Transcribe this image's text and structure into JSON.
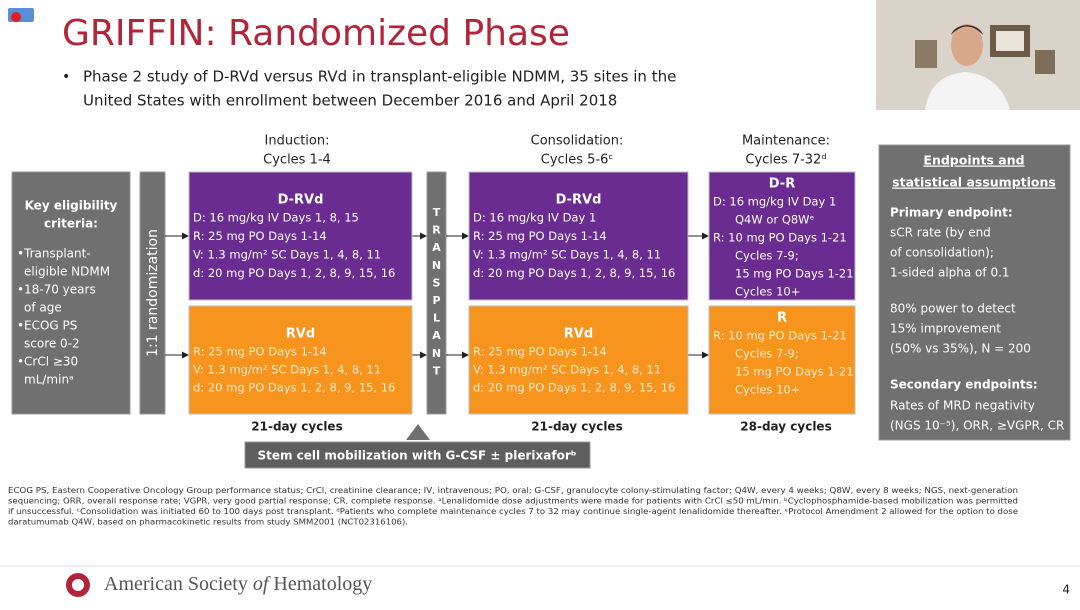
{
  "header": {
    "title": "GRIFFIN: Randomized Phase",
    "bullet": [
      "Phase 2 study of D-RVd versus RVd in transplant-eligible NDMM, 35 sites in the",
      "United States with enrollment between December 2016 and April 2018"
    ]
  },
  "eligibility": {
    "title": [
      "Key eligibility",
      "criteria:"
    ],
    "items": [
      [
        "Transplant-",
        "eligible NDMM"
      ],
      [
        "18-70 years",
        "of age"
      ],
      [
        "ECOG PS",
        "score 0-2"
      ],
      [
        "CrCl ≥30",
        "mL/minᵃ"
      ]
    ]
  },
  "randomization": "1:1 randomization",
  "transplant": "TRANSPLANT",
  "phases": [
    {
      "name": "Induction:",
      "cycles": "Cycles 1-4",
      "cycle_length": "21-day cycles",
      "arms": [
        {
          "name": "D-RVd",
          "lines": [
            "D: 16 mg/kg IV Days 1, 8, 15",
            "R: 25 mg PO Days 1-14",
            "V: 1.3 mg/m² SC Days 1, 4, 8, 11",
            "d: 20 mg PO Days 1, 2, 8, 9, 15, 16"
          ]
        },
        {
          "name": "RVd",
          "lines": [
            "R: 25 mg PO Days 1-14",
            "V: 1.3 mg/m² SC Days 1, 4, 8, 11",
            "d: 20 mg PO Days 1, 2, 8, 9, 15, 16"
          ]
        }
      ]
    },
    {
      "name": "Consolidation:",
      "cycles": "Cycles 5-6ᶜ",
      "cycle_length": "21-day cycles",
      "arms": [
        {
          "name": "D-RVd",
          "lines": [
            "D: 16 mg/kg IV Day 1",
            "R: 25 mg PO Days 1-14",
            "V: 1.3 mg/m² SC Days 1, 4, 8, 11",
            "d: 20 mg PO Days 1, 2, 8, 9, 15, 16"
          ]
        },
        {
          "name": "RVd",
          "lines": [
            "R: 25 mg PO Days 1-14",
            "V: 1.3 mg/m² SC Days 1, 4, 8, 11",
            "d: 20 mg PO Days 1, 2, 8, 9, 15, 16"
          ]
        }
      ]
    },
    {
      "name": "Maintenance:",
      "cycles": "Cycles 7-32ᵈ",
      "cycle_length": "28-day cycles",
      "arms": [
        {
          "name": "D-R",
          "lines": [
            "D: 16 mg/kg IV Day 1",
            "Q4W or Q8Wᵉ",
            "R: 10 mg PO Days 1-21",
            "Cycles 7-9;",
            "15 mg PO Days 1-21",
            "Cycles 10+"
          ]
        },
        {
          "name": "R",
          "lines": [
            "R: 10 mg PO Days 1-21",
            "Cycles 7-9;",
            "15 mg PO Days 1-21",
            "Cycles 10+"
          ]
        }
      ]
    }
  ],
  "stem_cell": "Stem cell mobilization with G-CSF ± plerixaforᵇ",
  "endpoints": {
    "title": [
      "Endpoints and",
      "statistical assumptions"
    ],
    "primary_label": "Primary endpoint:",
    "primary": [
      "sCR rate (by end",
      "of consolidation);",
      "1-sided alpha of 0.1"
    ],
    "power": [
      "80% power to detect",
      "15% improvement",
      "(50% vs 35%), N = 200"
    ],
    "secondary_label": "Secondary endpoints:",
    "secondary": [
      "Rates of MRD negativity",
      "(NGS 10⁻⁵), ORR, ≥VGPR, CR"
    ]
  },
  "footnotes": [
    "ECOG PS, Eastern Cooperative Oncology Group performance status; CrCl, creatinine clearance; IV, intravenous; PO, oral; G-CSF, granulocyte colony-stimulating factor; Q4W, every 4 weeks; Q8W, every 8 weeks; NGS, next-generation",
    "sequencing; ORR, overall response rate; VGPR, very good partial response; CR, complete response. ᵃLenalidomide dose adjustments were made for patients with CrCl ≤50 mL/min. ᵇCyclophosphamide-based mobilization was permitted",
    "if unsuccessful. ᶜConsolidation was initiated 60 to 100 days post transplant. ᵈPatients who complete maintenance cycles 7 to 32 may continue single-agent lenalidomide thereafter. ᵉProtocol Amendment 2 allowed for the option to dose",
    "daratumumab Q4W, based on pharmacokinetic results from study SMM2001 (NCT02316106)."
  ],
  "footer": {
    "society": [
      "American Society ",
      "of",
      " Hematology"
    ],
    "page": "4"
  }
}
